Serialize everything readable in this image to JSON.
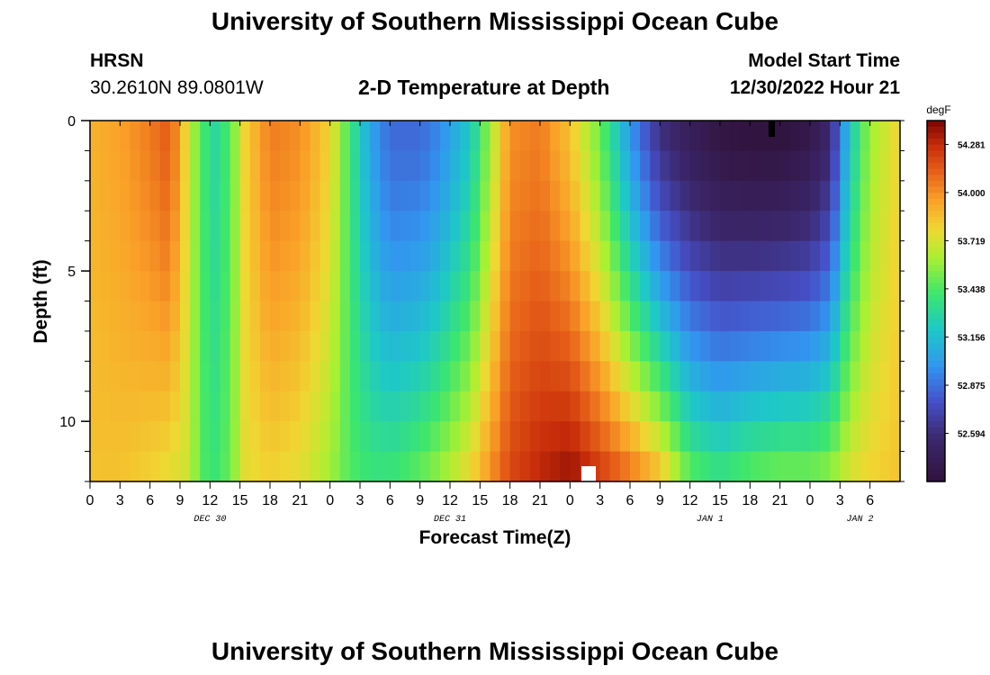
{
  "header": {
    "title": "University of Southern Mississippi Ocean Cube",
    "station": "HRSN",
    "coords": "30.2610N  89.0801W",
    "plot_title": "2-D Temperature at Depth",
    "model_start_label": "Model Start Time",
    "model_start_value": "12/30/2022 Hour 21"
  },
  "footer": {
    "title": "University of Southern Mississippi Ocean Cube"
  },
  "chart_data": {
    "type": "heatmap",
    "title": "2-D Temperature at Depth",
    "xlabel": "Forecast Time(Z)",
    "ylabel": "Depth (ft)",
    "xlim_hours": [
      0,
      81
    ],
    "ylim_depth_ft": [
      0,
      12
    ],
    "x_tick_labels": [
      "0",
      "3",
      "6",
      "9",
      "12",
      "15",
      "18",
      "21",
      "0",
      "3",
      "6",
      "9",
      "12",
      "15",
      "18",
      "21",
      "0",
      "3",
      "6",
      "9",
      "12",
      "15",
      "18",
      "21",
      "0",
      "3",
      "6"
    ],
    "x_tick_hours": [
      0,
      3,
      6,
      9,
      12,
      15,
      18,
      21,
      24,
      27,
      30,
      33,
      36,
      39,
      42,
      45,
      48,
      51,
      54,
      57,
      60,
      63,
      66,
      69,
      72,
      75,
      78
    ],
    "date_labels": [
      {
        "text": "DEC 30",
        "hour": 12
      },
      {
        "text": "DEC 31",
        "hour": 36
      },
      {
        "text": "JAN 1",
        "hour": 62
      },
      {
        "text": "JAN 2",
        "hour": 77
      }
    ],
    "y_tick_labels": [
      "0",
      "5",
      "10"
    ],
    "y_tick_values": [
      0,
      5,
      10
    ],
    "colorbar": {
      "unit": "degF",
      "ticks": [
        "54.281",
        "54.000",
        "53.719",
        "53.438",
        "53.156",
        "52.875",
        "52.594"
      ],
      "tick_values": [
        54.281,
        54.0,
        53.719,
        53.438,
        53.156,
        52.875,
        52.594
      ],
      "range": [
        52.313,
        54.42
      ]
    },
    "profiles": [
      {
        "hour": 0,
        "surface": 53.9,
        "bottom": 53.85
      },
      {
        "hour": 3,
        "surface": 53.95,
        "bottom": 53.85
      },
      {
        "hour": 6,
        "surface": 54.05,
        "bottom": 53.8
      },
      {
        "hour": 8,
        "surface": 54.15,
        "bottom": 53.75
      },
      {
        "hour": 10,
        "surface": 53.7,
        "bottom": 53.7
      },
      {
        "hour": 11,
        "surface": 53.45,
        "bottom": 53.45
      },
      {
        "hour": 12.5,
        "surface": 53.3,
        "bottom": 53.4
      },
      {
        "hour": 14,
        "surface": 53.45,
        "bottom": 53.5
      },
      {
        "hour": 15.5,
        "surface": 53.8,
        "bottom": 53.75
      },
      {
        "hour": 18,
        "surface": 54.05,
        "bottom": 53.8
      },
      {
        "hour": 21,
        "surface": 54.0,
        "bottom": 53.75
      },
      {
        "hour": 24,
        "surface": 53.8,
        "bottom": 53.6
      },
      {
        "hour": 26,
        "surface": 53.4,
        "bottom": 53.45
      },
      {
        "hour": 28,
        "surface": 53.05,
        "bottom": 53.4
      },
      {
        "hour": 30,
        "surface": 52.85,
        "bottom": 53.4
      },
      {
        "hour": 33,
        "surface": 52.85,
        "bottom": 53.5
      },
      {
        "hour": 35,
        "surface": 52.95,
        "bottom": 53.6
      },
      {
        "hour": 38,
        "surface": 53.2,
        "bottom": 53.8
      },
      {
        "hour": 40,
        "surface": 53.6,
        "bottom": 54.0
      },
      {
        "hour": 42,
        "surface": 54.0,
        "bottom": 54.2
      },
      {
        "hour": 45,
        "surface": 54.05,
        "bottom": 54.3
      },
      {
        "hour": 48,
        "surface": 53.85,
        "bottom": 54.38
      },
      {
        "hour": 51,
        "surface": 53.5,
        "bottom": 54.25
      },
      {
        "hour": 54,
        "surface": 53.0,
        "bottom": 54.1
      },
      {
        "hour": 57,
        "surface": 52.6,
        "bottom": 53.9
      },
      {
        "hour": 60,
        "surface": 52.45,
        "bottom": 53.5
      },
      {
        "hour": 63,
        "surface": 52.35,
        "bottom": 53.4
      },
      {
        "hour": 66,
        "surface": 52.32,
        "bottom": 53.5
      },
      {
        "hour": 69,
        "surface": 52.32,
        "bottom": 53.55
      },
      {
        "hour": 72,
        "surface": 52.38,
        "bottom": 53.55
      },
      {
        "hour": 74,
        "surface": 52.55,
        "bottom": 53.6
      },
      {
        "hour": 76,
        "surface": 53.2,
        "bottom": 53.75
      },
      {
        "hour": 78,
        "surface": 53.6,
        "bottom": 53.8
      },
      {
        "hour": 81,
        "surface": 53.8,
        "bottom": 53.85
      }
    ]
  }
}
